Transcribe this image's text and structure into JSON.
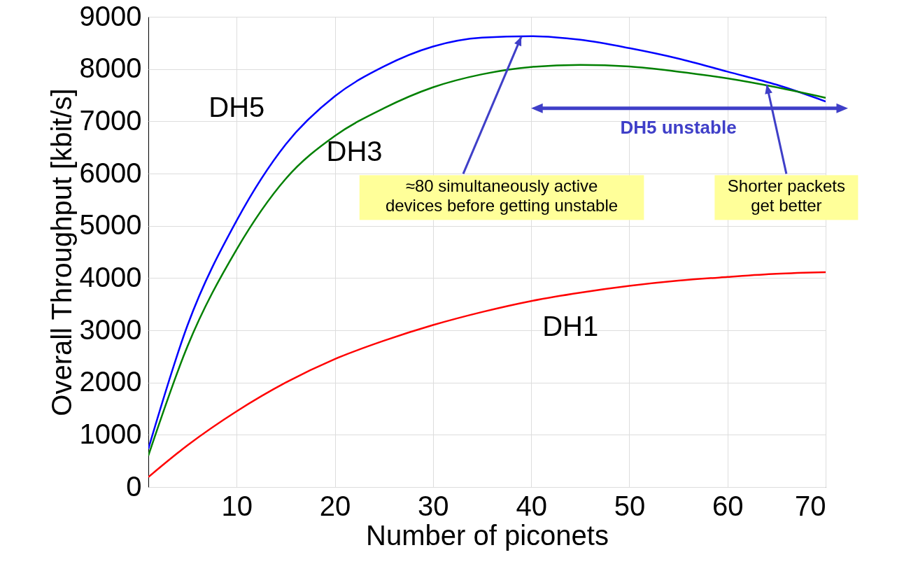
{
  "chart_data": {
    "type": "line",
    "xlabel": "Number of piconets",
    "ylabel": "Overall Throughput [kbit/s]",
    "x": [
      1,
      5,
      10,
      15,
      20,
      25,
      30,
      35,
      40,
      45,
      50,
      55,
      60,
      65,
      70
    ],
    "series": [
      {
        "name": "DH5",
        "color": "#0000ff",
        "values": [
          730,
          3100,
          5100,
          6560,
          7480,
          8050,
          8430,
          8600,
          8630,
          8560,
          8400,
          8200,
          7950,
          7700,
          7380
        ]
      },
      {
        "name": "DH3",
        "color": "#008000",
        "values": [
          600,
          2700,
          4550,
          5900,
          6720,
          7250,
          7650,
          7900,
          8040,
          8080,
          8050,
          7950,
          7820,
          7650,
          7450
        ]
      },
      {
        "name": "DH1",
        "color": "#ff0000",
        "values": [
          190,
          800,
          1450,
          2000,
          2450,
          2800,
          3100,
          3350,
          3560,
          3720,
          3850,
          3950,
          4020,
          4080,
          4110
        ]
      }
    ],
    "xlim": [
      1,
      70
    ],
    "xticks": [
      10,
      20,
      30,
      40,
      50,
      60,
      70
    ],
    "ylim": [
      0,
      9000
    ],
    "yticks": [
      0,
      1000,
      2000,
      3000,
      4000,
      5000,
      6000,
      7000,
      8000,
      9000
    ],
    "grid": true,
    "legend": false,
    "annotations": [
      {
        "text": "≈80 simultaneously active devices before getting unstable",
        "x": 39,
        "y": 8620
      },
      {
        "text": "Shorter packets get better",
        "x": 64,
        "y": 7700
      },
      "DH5 unstable"
    ]
  }
}
